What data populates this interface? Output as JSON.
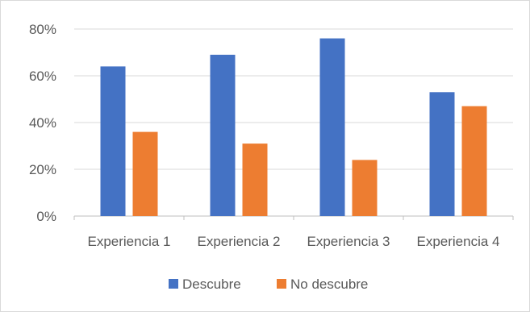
{
  "chart_data": {
    "type": "bar",
    "categories": [
      "Experiencia 1",
      "Experiencia 2",
      "Experiencia 3",
      "Experiencia 4"
    ],
    "series": [
      {
        "name": "Descubre",
        "values": [
          64,
          69,
          76,
          53
        ],
        "color": "#4472C4"
      },
      {
        "name": "No descubre",
        "values": [
          36,
          31,
          24,
          47
        ],
        "color": "#ED7D31"
      }
    ],
    "ylim": [
      0,
      80
    ],
    "yticks": [
      0,
      20,
      40,
      60,
      80
    ],
    "ytick_labels": [
      "0%",
      "20%",
      "40%",
      "60%",
      "80%"
    ],
    "grid": true,
    "legend_position": "bottom",
    "title": "",
    "xlabel": "",
    "ylabel": ""
  },
  "colors": {
    "gridline": "#d9d9d9",
    "axis": "#bfbfbf",
    "text": "#595959"
  }
}
